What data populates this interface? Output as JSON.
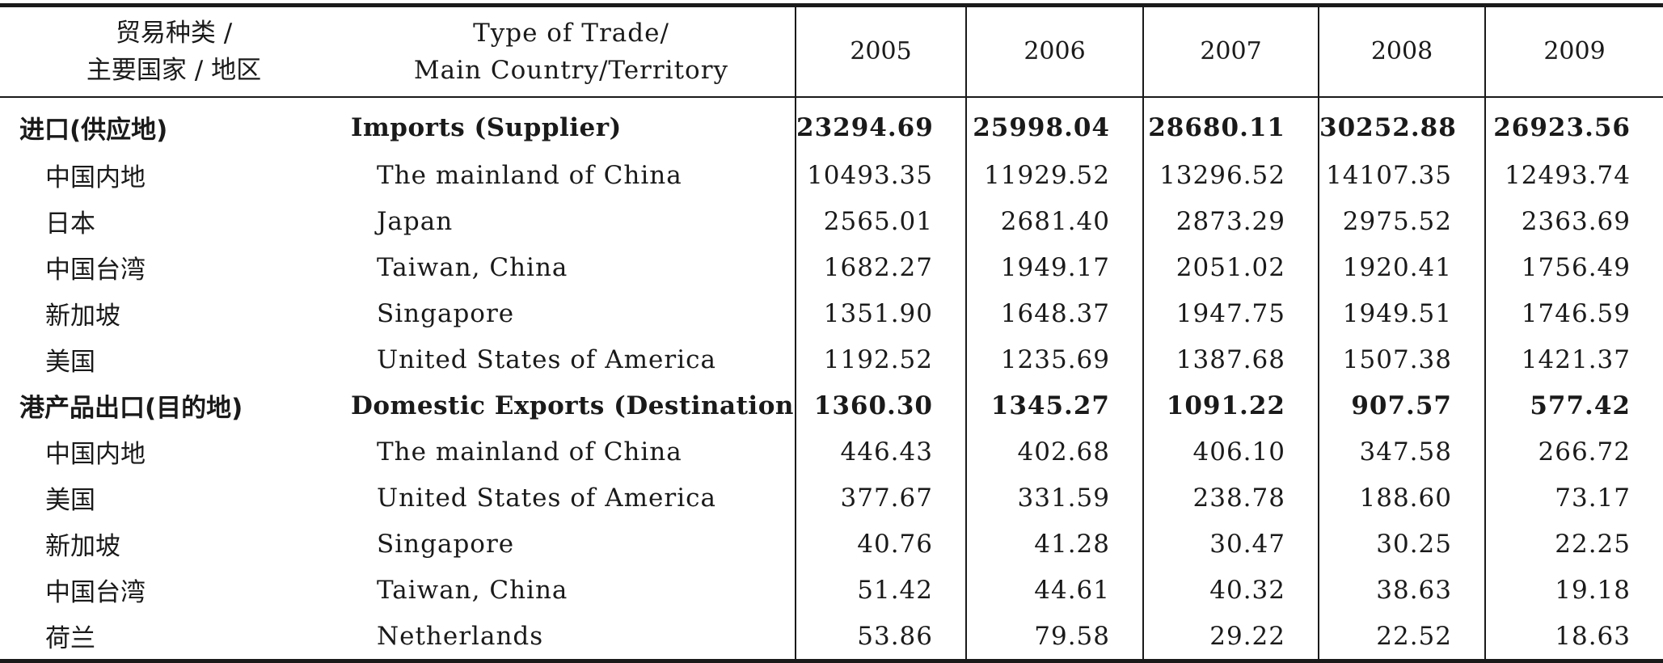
{
  "header": {
    "col1_line1": "贸易种类 /",
    "col1_line2": "主要国家 / 地区",
    "col2_line1": "Type of Trade/",
    "col2_line2": "Main Country/Territory",
    "years": [
      "2005",
      "2006",
      "2007",
      "2008",
      "2009"
    ]
  },
  "rows": [
    {
      "zh": "进口(供应地)",
      "en": "Imports (Supplier)",
      "values": [
        "23294.69",
        "25998.04",
        "28680.11",
        "30252.88",
        "26923.56"
      ],
      "section": true
    },
    {
      "zh": "中国内地",
      "en": "The mainland of China",
      "values": [
        "10493.35",
        "11929.52",
        "13296.52",
        "14107.35",
        "12493.74"
      ],
      "section": false
    },
    {
      "zh": "日本",
      "en": "Japan",
      "values": [
        "2565.01",
        "2681.40",
        "2873.29",
        "2975.52",
        "2363.69"
      ],
      "section": false
    },
    {
      "zh": "中国台湾",
      "en": "Taiwan, China",
      "values": [
        "1682.27",
        "1949.17",
        "2051.02",
        "1920.41",
        "1756.49"
      ],
      "section": false
    },
    {
      "zh": "新加坡",
      "en": "Singapore",
      "values": [
        "1351.90",
        "1648.37",
        "1947.75",
        "1949.51",
        "1746.59"
      ],
      "section": false
    },
    {
      "zh": "美国",
      "en": "United States of America",
      "values": [
        "1192.52",
        "1235.69",
        "1387.68",
        "1507.38",
        "1421.37"
      ],
      "section": false
    },
    {
      "zh": "港产品出口(目的地)",
      "en": "Domestic Exports (Destination)",
      "values": [
        "1360.30",
        "1345.27",
        "1091.22",
        "907.57",
        "577.42"
      ],
      "section": true
    },
    {
      "zh": "中国内地",
      "en": "The mainland of China",
      "values": [
        "446.43",
        "402.68",
        "406.10",
        "347.58",
        "266.72"
      ],
      "section": false
    },
    {
      "zh": "美国",
      "en": "United States of America",
      "values": [
        "377.67",
        "331.59",
        "238.78",
        "188.60",
        "73.17"
      ],
      "section": false
    },
    {
      "zh": "新加坡",
      "en": "Singapore",
      "values": [
        "40.76",
        "41.28",
        "30.47",
        "30.25",
        "22.25"
      ],
      "section": false
    },
    {
      "zh": "中国台湾",
      "en": "Taiwan, China",
      "values": [
        "51.42",
        "44.61",
        "40.32",
        "38.63",
        "19.18"
      ],
      "section": false
    },
    {
      "zh": "荷兰",
      "en": "Netherlands",
      "values": [
        "53.86",
        "79.58",
        "29.22",
        "22.52",
        "18.63"
      ],
      "section": false
    }
  ]
}
